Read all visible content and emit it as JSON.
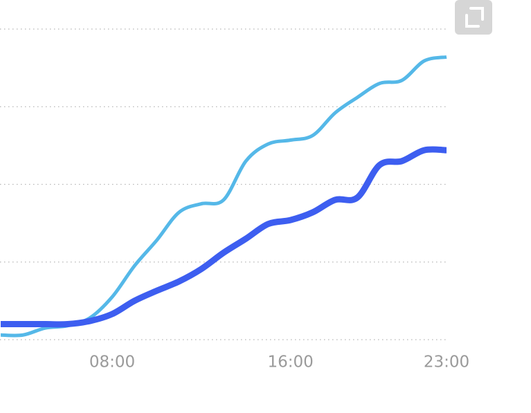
{
  "chart_data": {
    "type": "line",
    "x": [
      3,
      4,
      5,
      6,
      7,
      8,
      9,
      10,
      11,
      12,
      13,
      14,
      15,
      16,
      17,
      18,
      19,
      20,
      21,
      22,
      23
    ],
    "series": [
      {
        "color": "#55b8e8",
        "values": [
          0.06,
          0.06,
          0.15,
          0.18,
          0.28,
          0.55,
          0.95,
          1.28,
          1.64,
          1.75,
          1.8,
          2.3,
          2.52,
          2.57,
          2.63,
          2.92,
          3.12,
          3.3,
          3.34,
          3.59,
          3.64
        ]
      },
      {
        "color": "#3d5ef0",
        "values": [
          0.2,
          0.2,
          0.2,
          0.2,
          0.24,
          0.33,
          0.5,
          0.63,
          0.75,
          0.91,
          1.12,
          1.3,
          1.49,
          1.54,
          1.64,
          1.8,
          1.83,
          2.25,
          2.3,
          2.44,
          2.44
        ]
      }
    ],
    "xlim": [
      3,
      23
    ],
    "xticks": [
      {
        "value": 8,
        "label": "08:00"
      },
      {
        "value": 16,
        "label": "16:00"
      },
      {
        "value": 23,
        "label": "23:00"
      }
    ],
    "ylim": [
      0,
      4
    ],
    "yticks": [
      0,
      1,
      2,
      3,
      4
    ],
    "grid": true
  }
}
